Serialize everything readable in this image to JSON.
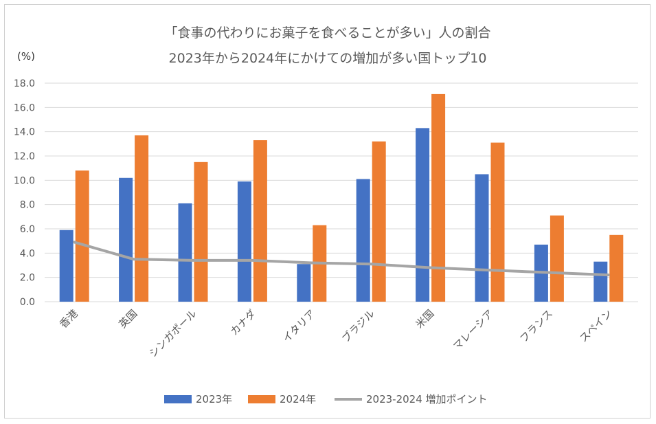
{
  "chart_data": {
    "type": "bar",
    "title": "「食事の代わりにお菓子を食べることが多い」人の割合",
    "subtitle": "2023年から2024年にかけての増加が多い国トップ10",
    "ylabel": "(%)",
    "ylim": [
      0,
      18
    ],
    "yticks": [
      "0.0",
      "2.0",
      "4.0",
      "6.0",
      "8.0",
      "10.0",
      "12.0",
      "14.0",
      "16.0",
      "18.0"
    ],
    "categories": [
      "香港",
      "英国",
      "シンガポール",
      "カナダ",
      "イタリア",
      "ブラジル",
      "米国",
      "マレーシア",
      "フランス",
      "スペイン"
    ],
    "series": [
      {
        "name": "2023年",
        "type": "bar",
        "color": "#4472C4",
        "values": [
          5.9,
          10.2,
          8.1,
          9.9,
          3.1,
          10.1,
          14.3,
          10.5,
          4.7,
          3.3
        ]
      },
      {
        "name": "2024年",
        "type": "bar",
        "color": "#ED7D31",
        "values": [
          10.8,
          13.7,
          11.5,
          13.3,
          6.3,
          13.2,
          17.1,
          13.1,
          7.1,
          5.5
        ]
      },
      {
        "name": "2023-2024 増加ポイント",
        "type": "line",
        "color": "#A5A5A5",
        "values": [
          4.9,
          3.5,
          3.4,
          3.4,
          3.2,
          3.1,
          2.8,
          2.6,
          2.4,
          2.2
        ]
      }
    ],
    "grid": true,
    "legend_position": "bottom"
  }
}
